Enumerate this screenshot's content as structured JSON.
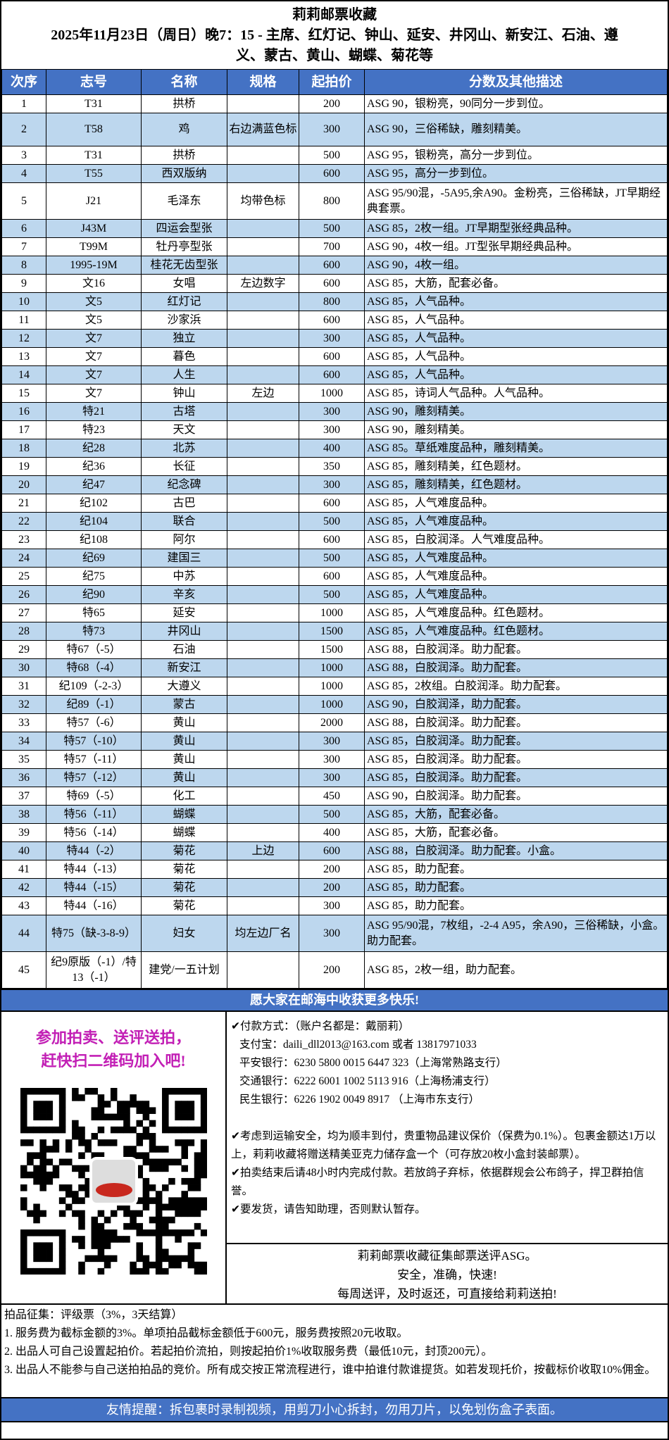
{
  "title": {
    "line1": "莉莉邮票收藏",
    "line2": "2025年11月23日（周日）晚7：15 - 主席、红灯记、钟山、延安、井冈山、新安江、石油、遵",
    "line3": "义、蒙古、黄山、蝴蝶、菊花等"
  },
  "colors": {
    "header": "#4472C4",
    "alt_row": "#BDD7EE",
    "promo": "#c21fb5"
  },
  "table": {
    "headers": [
      "次序",
      "志号",
      "名称",
      "规格",
      "起拍价",
      "分数及其他描述"
    ],
    "rows": [
      [
        "1",
        "T31",
        "拱桥",
        "",
        "200",
        "ASG 90，银粉亮，90同分一步到位。"
      ],
      [
        "2",
        "T58",
        "鸡",
        "右边满蓝色标",
        "300",
        "ASG 90，三俗稀缺，雕刻精美。"
      ],
      [
        "3",
        "T31",
        "拱桥",
        "",
        "500",
        "ASG 95，银粉亮，高分一步到位。"
      ],
      [
        "4",
        "T55",
        "西双版纳",
        "",
        "600",
        "ASG 95，高分一步到位。"
      ],
      [
        "5",
        "J21",
        "毛泽东",
        "均带色标",
        "800",
        "ASG 95/90混，-5A95,余A90。金粉亮，三俗稀缺，JT早期经典套票。"
      ],
      [
        "6",
        "J43M",
        "四运会型张",
        "",
        "500",
        "ASG 85，2枚一组。JT早期型张经典品种。"
      ],
      [
        "7",
        "T99M",
        "牡丹亭型张",
        "",
        "700",
        "ASG 90，4枚一组。JT型张早期经典品种。"
      ],
      [
        "8",
        "1995-19M",
        "桂花无齿型张",
        "",
        "600",
        "ASG 90，4枚一组。"
      ],
      [
        "9",
        "文16",
        "女唱",
        "左边数字",
        "600",
        "ASG 85，大筋，配套必备。"
      ],
      [
        "10",
        "文5",
        "红灯记",
        "",
        "800",
        "ASG 85，人气品种。"
      ],
      [
        "11",
        "文5",
        "沙家浜",
        "",
        "600",
        "ASG 85，人气品种。"
      ],
      [
        "12",
        "文7",
        "独立",
        "",
        "300",
        "ASG 85，人气品种。"
      ],
      [
        "13",
        "文7",
        "暮色",
        "",
        "600",
        "ASG 85，人气品种。"
      ],
      [
        "14",
        "文7",
        "人生",
        "",
        "600",
        "ASG 85，人气品种。"
      ],
      [
        "15",
        "文7",
        "钟山",
        "左边",
        "1000",
        "ASG 85，诗词人气品种。人气品种。"
      ],
      [
        "16",
        "特21",
        "古塔",
        "",
        "300",
        "ASG 90，雕刻精美。"
      ],
      [
        "17",
        "特23",
        "天文",
        "",
        "300",
        "ASG 90，雕刻精美。"
      ],
      [
        "18",
        "纪28",
        "北苏",
        "",
        "400",
        "ASG 85。草纸难度品种，雕刻精美。"
      ],
      [
        "19",
        "纪36",
        "长征",
        "",
        "350",
        "ASG 85，雕刻精美，红色题材。"
      ],
      [
        "20",
        "纪47",
        "纪念碑",
        "",
        "300",
        "ASG 85，雕刻精美，红色题材。"
      ],
      [
        "21",
        "纪102",
        "古巴",
        "",
        "600",
        "ASG 85，人气难度品种。"
      ],
      [
        "22",
        "纪104",
        "联合",
        "",
        "500",
        "ASG 85，人气难度品种。"
      ],
      [
        "23",
        "纪108",
        "阿尔",
        "",
        "600",
        "ASG 85，白胶润泽。人气难度品种。"
      ],
      [
        "24",
        "纪69",
        "建国三",
        "",
        "500",
        "ASG 85，人气难度品种。"
      ],
      [
        "25",
        "纪75",
        "中苏",
        "",
        "600",
        "ASG 85，人气难度品种。"
      ],
      [
        "26",
        "纪90",
        "辛亥",
        "",
        "500",
        "ASG 85，人气难度品种。"
      ],
      [
        "27",
        "特65",
        "延安",
        "",
        "1000",
        "ASG 85，人气难度品种。红色题材。"
      ],
      [
        "28",
        "特73",
        "井冈山",
        "",
        "1500",
        "ASG 85，人气难度品种。红色题材。"
      ],
      [
        "29",
        "特67（-5）",
        "石油",
        "",
        "1500",
        "ASG 88，白胶润泽。助力配套。"
      ],
      [
        "30",
        "特68（-4）",
        "新安江",
        "",
        "1000",
        "ASG 88，白胶润泽。助力配套。"
      ],
      [
        "31",
        "纪109（-2-3）",
        "大遵义",
        "",
        "1000",
        "ASG 85，2枚组。白胶润泽。助力配套。"
      ],
      [
        "32",
        "纪89（-1）",
        "蒙古",
        "",
        "1000",
        "ASG 90，白胶润泽，助力配套。"
      ],
      [
        "33",
        "特57（-6）",
        "黄山",
        "",
        "2000",
        "ASG 88，白胶润泽。助力配套。"
      ],
      [
        "34",
        "特57（-10）",
        "黄山",
        "",
        "300",
        "ASG 85，白胶润泽。助力配套。"
      ],
      [
        "35",
        "特57（-11）",
        "黄山",
        "",
        "300",
        "ASG 85，白胶润泽。助力配套。"
      ],
      [
        "36",
        "特57（-12）",
        "黄山",
        "",
        "300",
        "ASG 85，白胶润泽。助力配套。"
      ],
      [
        "37",
        "特69（-5）",
        "化工",
        "",
        "450",
        "ASG 90，白胶润泽。助力配套。"
      ],
      [
        "38",
        "特56（-11）",
        "蝴蝶",
        "",
        "500",
        "ASG 85，大筋，配套必备。"
      ],
      [
        "39",
        "特56（-14）",
        "蝴蝶",
        "",
        "400",
        "ASG 85，大筋，配套必备。"
      ],
      [
        "40",
        "特44（-2）",
        "菊花",
        "上边",
        "600",
        "ASG 88，白胶润泽。助力配套。小盒。"
      ],
      [
        "41",
        "特44（-13）",
        "菊花",
        "",
        "200",
        "ASG 85，助力配套。"
      ],
      [
        "42",
        "特44（-15）",
        "菊花",
        "",
        "200",
        "ASG 85，助力配套。"
      ],
      [
        "43",
        "特44（-16）",
        "菊花",
        "",
        "300",
        "ASG 85，助力配套。"
      ],
      [
        "44",
        "特75（缺-3-8-9）",
        "妇女",
        "均左边厂名",
        "300",
        "ASG 95/90混，7枚组，-2-4 A95，余A90，三俗稀缺，小盒。助力配套。"
      ],
      [
        "45",
        "纪9原版（-1）/特13（-1）",
        "建党/一五计划",
        "",
        "200",
        "ASG 85，2枚一组，助力配套。"
      ]
    ]
  },
  "banner_wish": "愿大家在邮海中收获更多快乐!",
  "promo": {
    "line1": "参加拍卖、送评送拍，",
    "line2": "赶快扫二维码加入吧!"
  },
  "payment": {
    "heading": "✔付款方式：（账户名都是：戴丽莉）",
    "lines": [
      "支付宝：daili_dll2013@163.com  或者 13817971033",
      "平安银行：6230 5800 0015 6447 323（上海常熟路支行）",
      "交通银行：6222 6001 1002 5113 916（上海杨浦支行）",
      "民生银行：6226 1902 0049 8917 （上海市东支行）"
    ],
    "notes": [
      "✔考虑到运输安全，均为顺丰到付，贵重物品建议保价（保费为0.1%）。包裹金额达1万以上，莉莉收藏将赠送精美亚克力储存盒一个（可存放20枚小盒封装邮票）。",
      "✔拍卖结束后请48小时内完成付款。若放鸽子弃标，依据群规会公布鸽子，捍卫群拍信誉。",
      "✔要发货，请告知助理，否则默认暂存。"
    ]
  },
  "asg": [
    "莉莉邮票收藏征集邮票送评ASG。",
    "安全，准确，快速!",
    "每周送评，及时返还，可直接给莉莉送拍!"
  ],
  "rules": [
    "拍品征集：评级票（3%，3天结算）",
    "1. 服务费为截标金额的3%。单项拍品截标金额低于600元，服务费按照20元收取。",
    "2. 出品人可自己设置起拍价。若起拍价流拍，则按起拍价1%收取服务费（最低10元，封顶200元）。",
    "3. 出品人不能参与自己送拍拍品的竞价。所有成交按正常流程进行，谁中拍谁付款谁提货。如若发现托价，按截标价收取10%佣金。"
  ],
  "reminder": "友情提醒：拆包裹时录制视频，用剪刀小心拆封，勿用刀片，以免划伤盒子表面。"
}
